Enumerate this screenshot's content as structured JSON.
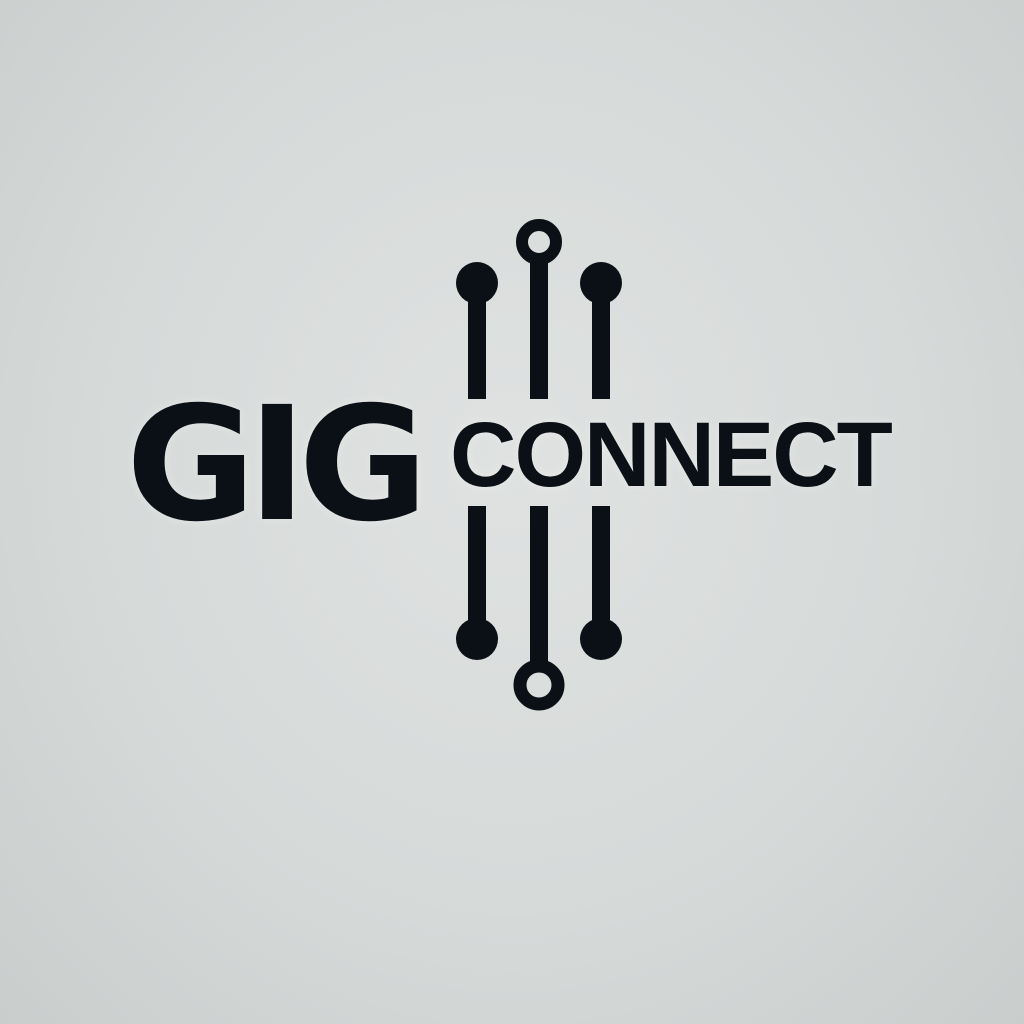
{
  "logo": {
    "word_primary": "GIG",
    "word_secondary": "CONNECT",
    "ink_color": "#0b1016",
    "background_color": "#d6dad9",
    "icon": "circuit-node-icon"
  }
}
